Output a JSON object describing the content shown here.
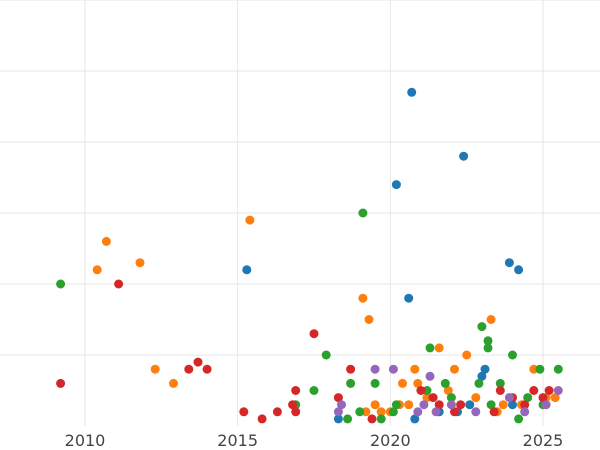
{
  "chart_data": {
    "type": "scatter",
    "title": "",
    "xlabel": "",
    "ylabel": "",
    "xlim": [
      2008.0,
      2026.8
    ],
    "ylim": [
      0,
      6
    ],
    "x_ticks": [
      2010,
      2015,
      2020,
      2025
    ],
    "x_tick_labels": [
      "2010",
      "2015",
      "2020",
      "2025"
    ],
    "y_gridlines": [
      1,
      2,
      3,
      4,
      5,
      6
    ],
    "grid": true,
    "legend": "none",
    "series": [
      {
        "name": "blue",
        "color": "#1f77b4",
        "points": [
          [
            2020.7,
            4.7
          ],
          [
            2022.4,
            3.8
          ],
          [
            2020.2,
            3.4
          ],
          [
            2015.3,
            2.2
          ],
          [
            2023.9,
            2.3
          ],
          [
            2024.2,
            2.2
          ],
          [
            2020.6,
            1.8
          ],
          [
            2023.1,
            0.8
          ],
          [
            2023.0,
            0.7
          ],
          [
            2022.2,
            0.2
          ],
          [
            2020.8,
            0.1
          ],
          [
            2018.3,
            0.1
          ],
          [
            2022.6,
            0.3
          ],
          [
            2021.6,
            0.2
          ],
          [
            2024.0,
            0.3
          ]
        ]
      },
      {
        "name": "orange",
        "color": "#ff7f0e",
        "points": [
          [
            2015.4,
            2.9
          ],
          [
            2010.7,
            2.6
          ],
          [
            2010.4,
            2.2
          ],
          [
            2011.8,
            2.3
          ],
          [
            2019.1,
            1.8
          ],
          [
            2019.3,
            1.5
          ],
          [
            2012.3,
            0.8
          ],
          [
            2012.9,
            0.6
          ],
          [
            2021.6,
            1.1
          ],
          [
            2022.5,
            1.0
          ],
          [
            2023.3,
            1.5
          ],
          [
            2024.7,
            0.8
          ],
          [
            2022.1,
            0.8
          ],
          [
            2020.8,
            0.8
          ],
          [
            2020.4,
            0.6
          ],
          [
            2020.9,
            0.6
          ],
          [
            2019.5,
            0.3
          ],
          [
            2020.0,
            0.2
          ],
          [
            2020.3,
            0.3
          ],
          [
            2021.2,
            0.4
          ],
          [
            2022.8,
            0.4
          ],
          [
            2023.5,
            0.2
          ],
          [
            2024.3,
            0.3
          ],
          [
            2025.1,
            0.4
          ],
          [
            2025.4,
            0.4
          ],
          [
            2021.9,
            0.5
          ],
          [
            2019.7,
            0.2
          ],
          [
            2020.6,
            0.3
          ],
          [
            2019.2,
            0.2
          ],
          [
            2023.7,
            0.3
          ]
        ]
      },
      {
        "name": "green",
        "color": "#2ca02c",
        "points": [
          [
            2009.2,
            2.0
          ],
          [
            2019.1,
            3.0
          ],
          [
            2017.9,
            1.0
          ],
          [
            2021.3,
            1.1
          ],
          [
            2023.0,
            1.4
          ],
          [
            2023.2,
            1.2
          ],
          [
            2023.2,
            1.1
          ],
          [
            2024.0,
            1.0
          ],
          [
            2017.5,
            0.5
          ],
          [
            2018.7,
            0.6
          ],
          [
            2019.5,
            0.6
          ],
          [
            2022.9,
            0.6
          ],
          [
            2023.6,
            0.6
          ],
          [
            2025.5,
            0.8
          ],
          [
            2024.9,
            0.8
          ],
          [
            2021.8,
            0.6
          ],
          [
            2021.2,
            0.5
          ],
          [
            2020.2,
            0.3
          ],
          [
            2019.0,
            0.2
          ],
          [
            2018.6,
            0.1
          ],
          [
            2019.7,
            0.1
          ],
          [
            2022.0,
            0.4
          ],
          [
            2023.3,
            0.3
          ],
          [
            2024.5,
            0.4
          ],
          [
            2025.0,
            0.3
          ],
          [
            2024.2,
            0.1
          ],
          [
            2016.9,
            0.3
          ],
          [
            2020.1,
            0.2
          ]
        ]
      },
      {
        "name": "red",
        "color": "#d62728",
        "points": [
          [
            2011.1,
            2.0
          ],
          [
            2009.2,
            0.6
          ],
          [
            2017.5,
            1.3
          ],
          [
            2013.7,
            0.9
          ],
          [
            2013.4,
            0.8
          ],
          [
            2014.0,
            0.8
          ],
          [
            2018.7,
            0.8
          ],
          [
            2016.9,
            0.5
          ],
          [
            2018.3,
            0.4
          ],
          [
            2015.2,
            0.2
          ],
          [
            2015.8,
            0.1
          ],
          [
            2016.3,
            0.2
          ],
          [
            2016.8,
            0.3
          ],
          [
            2016.9,
            0.2
          ],
          [
            2021.4,
            0.4
          ],
          [
            2021.6,
            0.3
          ],
          [
            2022.3,
            0.3
          ],
          [
            2023.4,
            0.2
          ],
          [
            2024.0,
            0.4
          ],
          [
            2024.7,
            0.5
          ],
          [
            2025.0,
            0.4
          ],
          [
            2023.6,
            0.5
          ],
          [
            2022.1,
            0.2
          ],
          [
            2021.0,
            0.5
          ],
          [
            2019.4,
            0.1
          ],
          [
            2024.4,
            0.3
          ],
          [
            2025.2,
            0.5
          ]
        ]
      },
      {
        "name": "purple",
        "color": "#9467bd",
        "points": [
          [
            2019.5,
            0.8
          ],
          [
            2020.1,
            0.8
          ],
          [
            2021.3,
            0.7
          ],
          [
            2018.3,
            0.2
          ],
          [
            2018.4,
            0.3
          ],
          [
            2021.5,
            0.2
          ],
          [
            2022.0,
            0.3
          ],
          [
            2022.8,
            0.2
          ],
          [
            2024.4,
            0.2
          ],
          [
            2025.1,
            0.3
          ],
          [
            2025.5,
            0.5
          ],
          [
            2021.1,
            0.3
          ],
          [
            2023.9,
            0.4
          ],
          [
            2020.9,
            0.2
          ]
        ]
      }
    ]
  }
}
